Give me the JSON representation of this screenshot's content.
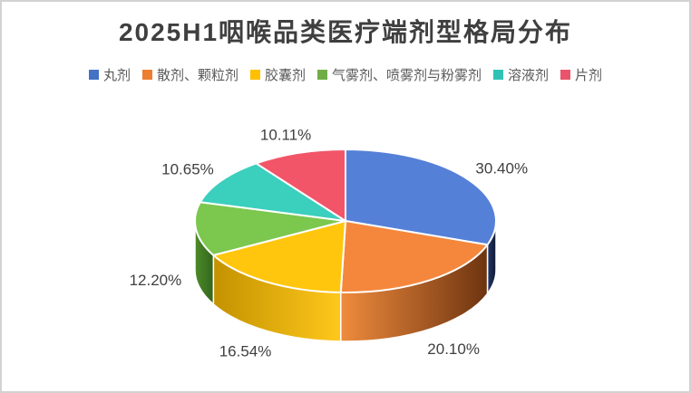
{
  "frame": {
    "border_color": "#d2d2d2",
    "background_color": "#ffffff"
  },
  "chart_data": {
    "type": "pie",
    "style": "3d",
    "title": "2025H1咽喉品类医疗端剂型格局分布",
    "title_color": "#3f3f3f",
    "legend_position": "top",
    "direction": "clockwise",
    "start_angle_deg": 0,
    "unit": "%",
    "label_color": "#404040",
    "legend_text_color": "#595959",
    "categories": [
      "丸剂",
      "散剂、颗粒剂",
      "胶囊剂",
      "气雾剂、喷雾剂与粉雾剂",
      "溶液剂",
      "片剂"
    ],
    "values": [
      30.4,
      20.1,
      16.54,
      12.2,
      10.65,
      10.11
    ],
    "data_labels": [
      "30.40%",
      "20.10%",
      "16.54%",
      "12.20%",
      "10.65%",
      "10.11%"
    ],
    "slices": [
      {
        "label": "丸剂",
        "value": 30.4,
        "display": "30.40%",
        "legend_color": "#4472c4",
        "top_color": "#5580d8",
        "side_from": "#23386b",
        "side_to": "#0e1730"
      },
      {
        "label": "散剂、颗粒剂",
        "value": 20.1,
        "display": "20.10%",
        "legend_color": "#ed7d31",
        "top_color": "#f5873c",
        "side_from": "#ef8b3d",
        "side_to": "#6e3410"
      },
      {
        "label": "胶囊剂",
        "value": 16.54,
        "display": "16.54%",
        "legend_color": "#ffc000",
        "top_color": "#ffc60d",
        "side_from": "#c39200",
        "side_to": "#ffc81c"
      },
      {
        "label": "气雾剂、喷雾剂与粉雾剂",
        "value": 12.2,
        "display": "12.20%",
        "legend_color": "#70ad47",
        "top_color": "#7cc74e",
        "side_from": "#4e8b2a",
        "side_to": "#33651b"
      },
      {
        "label": "溶液剂",
        "value": 10.65,
        "display": "10.65%",
        "legend_color": "#30c3b5",
        "top_color": "#3bcfbd",
        "side_from": "#1e8a80",
        "side_to": "#15655e"
      },
      {
        "label": "片剂",
        "value": 10.11,
        "display": "10.11%",
        "legend_color": "#e9536b",
        "top_color": "#f25568",
        "side_from": "#a83248",
        "side_to": "#7c2435"
      }
    ]
  }
}
